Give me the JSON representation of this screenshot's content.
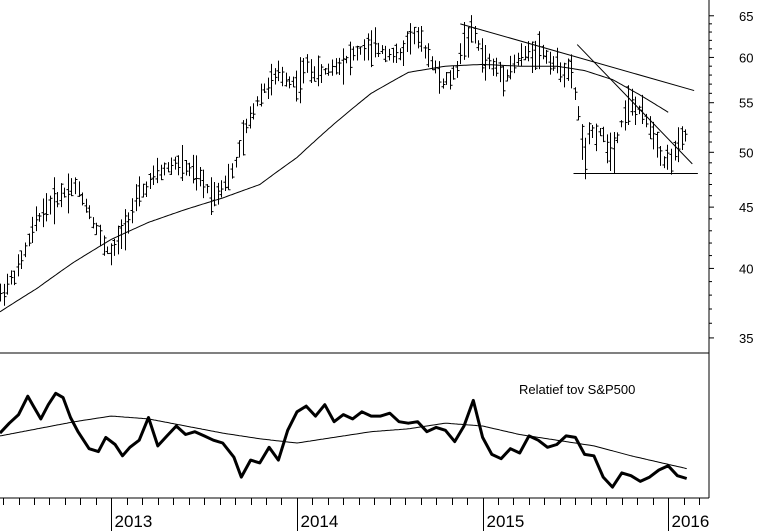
{
  "chart_data": [
    {
      "type": "line",
      "subtype": "weekly-ohlc-bars",
      "y_scale": "log",
      "ylim": [
        34,
        67
      ],
      "yticks": [
        35,
        40,
        45,
        50,
        55,
        60,
        65
      ],
      "x_tick_labels": [
        "2013",
        "2014",
        "2015",
        "2016"
      ],
      "x_tick_values": [
        2013.0,
        2014.0,
        2015.0,
        2016.0
      ],
      "xlim": [
        2012.4,
        2016.22
      ],
      "grid": false,
      "series": [
        {
          "kind": "price",
          "x": [
            2012.4,
            2012.5,
            2012.6,
            2012.65,
            2012.72,
            2012.8,
            2012.87,
            2012.95,
            2013.0,
            2013.06,
            2013.15,
            2013.25,
            2013.35,
            2013.45,
            2013.55,
            2013.65,
            2013.72,
            2013.8,
            2013.9,
            2014.0,
            2014.05,
            2014.12,
            2014.2,
            2014.28,
            2014.36,
            2014.45,
            2014.55,
            2014.62,
            2014.72,
            2014.78,
            2014.85,
            2014.9,
            2014.95,
            2015.0,
            2015.05,
            2015.12,
            2015.2,
            2015.3,
            2015.4,
            2015.48,
            2015.53,
            2015.55,
            2015.58,
            2015.63,
            2015.7,
            2015.78,
            2015.85,
            2015.92,
            2015.98,
            2016.04,
            2016.1
          ],
          "values": [
            38,
            40,
            44,
            45,
            46,
            47,
            45,
            42,
            41,
            43,
            46,
            48,
            49,
            48,
            46,
            48,
            52,
            56,
            58,
            57,
            59,
            58,
            59,
            60,
            61,
            61,
            60,
            63,
            60,
            57,
            58,
            62,
            63,
            60,
            59,
            58,
            60,
            61,
            59,
            58,
            52,
            49,
            52,
            52,
            50,
            55,
            54,
            52,
            49,
            50,
            52
          ]
        },
        {
          "kind": "moving-average",
          "x": [
            2012.4,
            2012.6,
            2012.8,
            2013.0,
            2013.2,
            2013.4,
            2013.6,
            2013.8,
            2014.0,
            2014.2,
            2014.4,
            2014.6,
            2014.8,
            2015.0,
            2015.2,
            2015.4,
            2015.55,
            2015.7,
            2015.85,
            2016.0
          ],
          "values": [
            36.8,
            38.5,
            40.5,
            42.3,
            43.7,
            44.8,
            45.8,
            47.0,
            49.5,
            52.8,
            56.0,
            58.3,
            59.0,
            59.2,
            59.0,
            59.0,
            58.5,
            57.5,
            55.8,
            54.0
          ]
        }
      ],
      "lines": [
        {
          "kind": "trendline",
          "from": [
            2014.88,
            64
          ],
          "to": [
            2016.14,
            56.3
          ]
        },
        {
          "kind": "trendline",
          "from": [
            2015.51,
            61.5
          ],
          "to": [
            2016.13,
            48.9
          ]
        },
        {
          "kind": "horizontal",
          "from": [
            2015.49,
            48
          ],
          "to": [
            2016.16,
            48
          ]
        }
      ]
    },
    {
      "type": "line",
      "annotation": "Relatief tov S&P500",
      "ylim": [
        0,
        10
      ],
      "series": [
        {
          "kind": "relative-strength",
          "x": [
            2012.4,
            2012.45,
            2012.5,
            2012.55,
            2012.58,
            2012.62,
            2012.66,
            2012.7,
            2012.74,
            2012.78,
            2012.82,
            2012.88,
            2012.93,
            2012.97,
            2013.02,
            2013.06,
            2013.1,
            2013.15,
            2013.2,
            2013.25,
            2013.3,
            2013.35,
            2013.4,
            2013.45,
            2013.5,
            2013.55,
            2013.6,
            2013.66,
            2013.7,
            2013.75,
            2013.8,
            2013.85,
            2013.9,
            2013.95,
            2014.0,
            2014.05,
            2014.1,
            2014.15,
            2014.2,
            2014.25,
            2014.3,
            2014.35,
            2014.4,
            2014.45,
            2014.5,
            2014.55,
            2014.6,
            2014.65,
            2014.7,
            2014.75,
            2014.8,
            2014.85,
            2014.9,
            2014.95,
            2015.0,
            2015.05,
            2015.1,
            2015.15,
            2015.2,
            2015.25,
            2015.3,
            2015.35,
            2015.4,
            2015.45,
            2015.5,
            2015.55,
            2015.6,
            2015.65,
            2015.7,
            2015.75,
            2015.8,
            2015.85,
            2015.9,
            2015.95,
            2016.0,
            2016.05,
            2016.1
          ],
          "values": [
            4.5,
            5.2,
            5.8,
            7.1,
            6.4,
            5.5,
            6.5,
            7.3,
            7.0,
            5.6,
            4.6,
            3.4,
            3.2,
            4.2,
            3.7,
            2.9,
            3.5,
            4.0,
            5.6,
            3.6,
            4.3,
            5.0,
            4.4,
            4.6,
            4.3,
            4.0,
            3.8,
            2.8,
            1.4,
            2.6,
            2.4,
            3.5,
            2.6,
            4.7,
            6.0,
            6.4,
            5.7,
            6.5,
            5.3,
            5.8,
            5.5,
            6.0,
            5.7,
            5.7,
            5.9,
            5.3,
            5.2,
            5.3,
            4.6,
            4.9,
            4.7,
            3.9,
            5.0,
            6.8,
            4.2,
            3.0,
            2.7,
            3.4,
            3.1,
            4.3,
            4.0,
            3.5,
            3.7,
            4.3,
            4.2,
            3.0,
            2.9,
            1.4,
            0.7,
            1.7,
            1.5,
            1.1,
            1.4,
            1.9,
            2.2,
            1.5,
            1.3
          ],
          "line_width": "thick"
        },
        {
          "kind": "moving-average",
          "x": [
            2012.4,
            2012.6,
            2012.8,
            2013.0,
            2013.2,
            2013.4,
            2013.6,
            2013.8,
            2014.0,
            2014.2,
            2014.4,
            2014.6,
            2014.8,
            2015.0,
            2015.2,
            2015.4,
            2015.6,
            2015.8,
            2016.0,
            2016.1
          ],
          "values": [
            4.3,
            4.8,
            5.3,
            5.7,
            5.5,
            5.0,
            4.5,
            4.1,
            3.8,
            4.2,
            4.6,
            4.8,
            5.2,
            5.0,
            4.4,
            4.0,
            3.6,
            2.9,
            2.3,
            2.0
          ],
          "line_width": "thin"
        }
      ]
    }
  ]
}
